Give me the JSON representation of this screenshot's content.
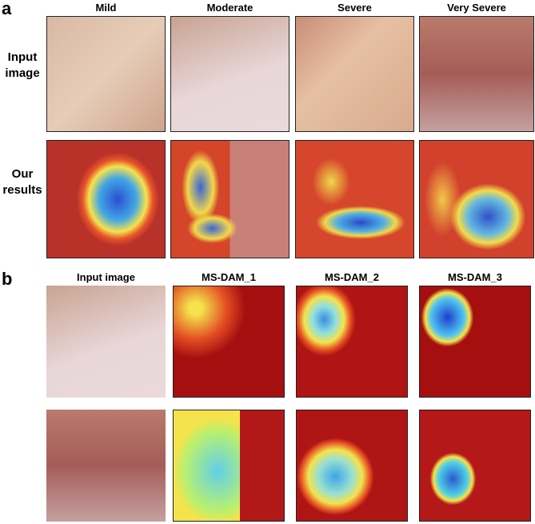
{
  "panel_a": {
    "label": "a",
    "columns": [
      "Mild",
      "Moderate",
      "Severe",
      "Very Severe"
    ],
    "rows": [
      "Input image",
      "Our results"
    ]
  },
  "panel_b": {
    "label": "b",
    "columns": [
      "Input image",
      "MS-DAM_1",
      "MS-DAM_2",
      "MS-DAM_3"
    ]
  }
}
